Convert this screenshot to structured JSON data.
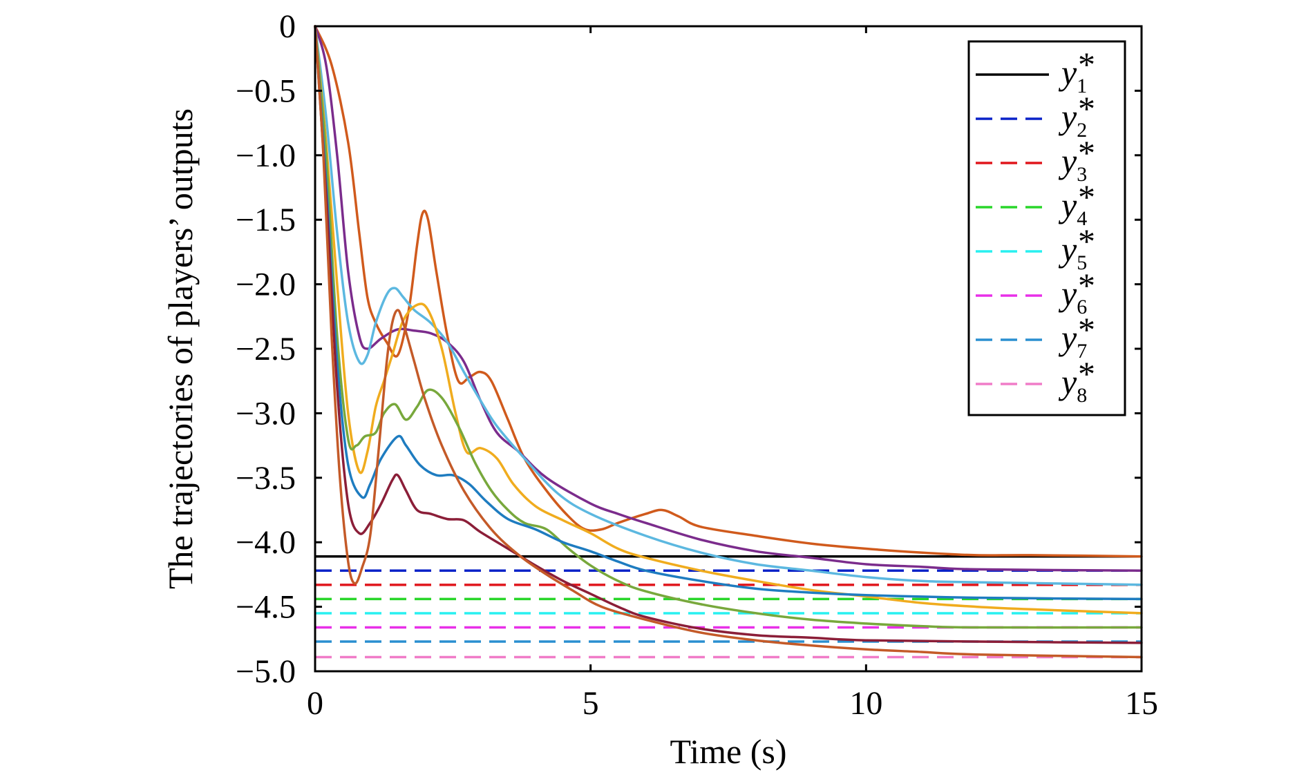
{
  "chart_data": {
    "type": "line",
    "title": "",
    "xlabel": "Time (s)",
    "ylabel": "The trajectories of players’ outputs",
    "xlim": [
      0,
      15
    ],
    "ylim": [
      -5.0,
      0
    ],
    "xticks": [
      0,
      5,
      10,
      15
    ],
    "xtick_labels": [
      "0",
      "5",
      "10",
      "15"
    ],
    "yticks": [
      0,
      -0.5,
      -1.0,
      -1.5,
      -2.0,
      -2.5,
      -3.0,
      -3.5,
      -4.0,
      -4.5,
      -5.0
    ],
    "ytick_labels": [
      "0",
      "−0.5",
      "−1.0",
      "−1.5",
      "−2.0",
      "−2.5",
      "−3.0",
      "−3.5",
      "−4.0",
      "−4.5",
      "−5.0"
    ],
    "grid": false,
    "legend_position": "top-right",
    "references": [
      {
        "name": "y",
        "sub": "1",
        "star": "*",
        "value": -4.11,
        "color": "#000000",
        "style": "solid"
      },
      {
        "name": "y",
        "sub": "2",
        "star": "*",
        "value": -4.22,
        "color": "#0a22c8",
        "style": "dashed"
      },
      {
        "name": "y",
        "sub": "3",
        "star": "*",
        "value": -4.33,
        "color": "#e0161c",
        "style": "dashed"
      },
      {
        "name": "y",
        "sub": "4",
        "star": "*",
        "value": -4.44,
        "color": "#29d62a",
        "style": "dashed"
      },
      {
        "name": "y",
        "sub": "5",
        "star": "*",
        "value": -4.55,
        "color": "#28f0f0",
        "style": "dashed"
      },
      {
        "name": "y",
        "sub": "6",
        "star": "*",
        "value": -4.66,
        "color": "#e830e8",
        "style": "dashed"
      },
      {
        "name": "y",
        "sub": "7",
        "star": "*",
        "value": -4.77,
        "color": "#2a8fd0",
        "style": "dashed"
      },
      {
        "name": "y",
        "sub": "8",
        "star": "*",
        "value": -4.89,
        "color": "#f07cc8",
        "style": "dashed"
      }
    ],
    "series": [
      {
        "color": "#d05a1c",
        "points": [
          [
            0,
            0
          ],
          [
            0.3,
            -0.3
          ],
          [
            0.6,
            -0.9
          ],
          [
            0.8,
            -1.6
          ],
          [
            0.95,
            -2.1
          ],
          [
            1.1,
            -2.3
          ],
          [
            1.3,
            -2.45
          ],
          [
            1.5,
            -2.55
          ],
          [
            1.7,
            -2.2
          ],
          [
            1.85,
            -1.7
          ],
          [
            1.95,
            -1.45
          ],
          [
            2.05,
            -1.5
          ],
          [
            2.2,
            -1.9
          ],
          [
            2.4,
            -2.4
          ],
          [
            2.6,
            -2.75
          ],
          [
            2.8,
            -2.72
          ],
          [
            3.0,
            -2.68
          ],
          [
            3.2,
            -2.75
          ],
          [
            3.5,
            -3.05
          ],
          [
            3.8,
            -3.35
          ],
          [
            4.2,
            -3.6
          ],
          [
            4.6,
            -3.8
          ],
          [
            4.9,
            -3.9
          ],
          [
            5.2,
            -3.9
          ],
          [
            5.5,
            -3.85
          ],
          [
            6.0,
            -3.78
          ],
          [
            6.3,
            -3.75
          ],
          [
            6.6,
            -3.8
          ],
          [
            7.0,
            -3.88
          ],
          [
            8.0,
            -3.95
          ],
          [
            9.0,
            -4.01
          ],
          [
            10.0,
            -4.05
          ],
          [
            11.0,
            -4.08
          ],
          [
            12.0,
            -4.1
          ],
          [
            13.0,
            -4.1
          ],
          [
            15.0,
            -4.11
          ]
        ]
      },
      {
        "color": "#7b2c8c",
        "points": [
          [
            0,
            0
          ],
          [
            0.2,
            -0.3
          ],
          [
            0.4,
            -1.0
          ],
          [
            0.6,
            -1.9
          ],
          [
            0.8,
            -2.4
          ],
          [
            0.95,
            -2.5
          ],
          [
            1.2,
            -2.42
          ],
          [
            1.5,
            -2.35
          ],
          [
            1.8,
            -2.36
          ],
          [
            2.1,
            -2.38
          ],
          [
            2.4,
            -2.45
          ],
          [
            2.7,
            -2.6
          ],
          [
            3.0,
            -2.9
          ],
          [
            3.3,
            -3.15
          ],
          [
            3.7,
            -3.3
          ],
          [
            4.2,
            -3.5
          ],
          [
            5.0,
            -3.7
          ],
          [
            5.5,
            -3.78
          ],
          [
            6.0,
            -3.85
          ],
          [
            7.0,
            -3.98
          ],
          [
            8.0,
            -4.07
          ],
          [
            9.0,
            -4.12
          ],
          [
            10.0,
            -4.17
          ],
          [
            11.0,
            -4.19
          ],
          [
            12.0,
            -4.21
          ],
          [
            15.0,
            -4.22
          ]
        ]
      },
      {
        "color": "#5cb8e0",
        "points": [
          [
            0,
            0
          ],
          [
            0.2,
            -0.7
          ],
          [
            0.4,
            -1.6
          ],
          [
            0.6,
            -2.3
          ],
          [
            0.8,
            -2.6
          ],
          [
            0.95,
            -2.55
          ],
          [
            1.1,
            -2.3
          ],
          [
            1.3,
            -2.08
          ],
          [
            1.45,
            -2.03
          ],
          [
            1.6,
            -2.1
          ],
          [
            1.8,
            -2.2
          ],
          [
            2.1,
            -2.3
          ],
          [
            2.4,
            -2.45
          ],
          [
            2.7,
            -2.68
          ],
          [
            3.0,
            -2.9
          ],
          [
            3.3,
            -3.1
          ],
          [
            3.8,
            -3.35
          ],
          [
            4.4,
            -3.62
          ],
          [
            5.0,
            -3.78
          ],
          [
            6.0,
            -3.95
          ],
          [
            7.0,
            -4.08
          ],
          [
            8.0,
            -4.17
          ],
          [
            9.0,
            -4.22
          ],
          [
            10.0,
            -4.27
          ],
          [
            11.0,
            -4.3
          ],
          [
            12.0,
            -4.31
          ],
          [
            15.0,
            -4.33
          ]
        ]
      },
      {
        "color": "#f0ac1e",
        "points": [
          [
            0,
            0
          ],
          [
            0.2,
            -0.9
          ],
          [
            0.4,
            -2.0
          ],
          [
            0.6,
            -3.0
          ],
          [
            0.8,
            -3.45
          ],
          [
            0.95,
            -3.3
          ],
          [
            1.1,
            -2.95
          ],
          [
            1.25,
            -2.75
          ],
          [
            1.4,
            -2.55
          ],
          [
            1.6,
            -2.28
          ],
          [
            1.85,
            -2.16
          ],
          [
            2.05,
            -2.2
          ],
          [
            2.3,
            -2.5
          ],
          [
            2.55,
            -3.0
          ],
          [
            2.75,
            -3.3
          ],
          [
            3.0,
            -3.27
          ],
          [
            3.3,
            -3.35
          ],
          [
            3.6,
            -3.55
          ],
          [
            4.0,
            -3.72
          ],
          [
            4.5,
            -3.83
          ],
          [
            5.0,
            -3.93
          ],
          [
            5.5,
            -4.05
          ],
          [
            6.0,
            -4.12
          ],
          [
            7.0,
            -4.22
          ],
          [
            8.0,
            -4.3
          ],
          [
            9.0,
            -4.37
          ],
          [
            10.0,
            -4.42
          ],
          [
            11.0,
            -4.47
          ],
          [
            12.0,
            -4.5
          ],
          [
            13.0,
            -4.52
          ],
          [
            15.0,
            -4.55
          ]
        ]
      },
      {
        "color": "#78a83c",
        "points": [
          [
            0,
            0
          ],
          [
            0.2,
            -1.0
          ],
          [
            0.4,
            -2.4
          ],
          [
            0.6,
            -3.2
          ],
          [
            0.75,
            -3.25
          ],
          [
            0.9,
            -3.18
          ],
          [
            1.1,
            -3.15
          ],
          [
            1.25,
            -3.0
          ],
          [
            1.45,
            -2.93
          ],
          [
            1.65,
            -3.05
          ],
          [
            1.85,
            -2.95
          ],
          [
            2.05,
            -2.82
          ],
          [
            2.3,
            -2.88
          ],
          [
            2.6,
            -3.1
          ],
          [
            2.9,
            -3.38
          ],
          [
            3.2,
            -3.6
          ],
          [
            3.5,
            -3.75
          ],
          [
            3.8,
            -3.85
          ],
          [
            4.2,
            -3.9
          ],
          [
            4.6,
            -4.05
          ],
          [
            5.0,
            -4.18
          ],
          [
            5.5,
            -4.3
          ],
          [
            6.0,
            -4.38
          ],
          [
            7.0,
            -4.48
          ],
          [
            8.0,
            -4.55
          ],
          [
            9.0,
            -4.6
          ],
          [
            10.0,
            -4.63
          ],
          [
            11.0,
            -4.65
          ],
          [
            12.0,
            -4.66
          ],
          [
            15.0,
            -4.66
          ]
        ]
      },
      {
        "color": "#1e7cc0",
        "points": [
          [
            0,
            0
          ],
          [
            0.2,
            -1.2
          ],
          [
            0.4,
            -2.6
          ],
          [
            0.6,
            -3.4
          ],
          [
            0.85,
            -3.65
          ],
          [
            1.0,
            -3.55
          ],
          [
            1.2,
            -3.35
          ],
          [
            1.5,
            -3.18
          ],
          [
            1.65,
            -3.25
          ],
          [
            1.9,
            -3.4
          ],
          [
            2.2,
            -3.48
          ],
          [
            2.5,
            -3.48
          ],
          [
            2.8,
            -3.55
          ],
          [
            3.1,
            -3.68
          ],
          [
            3.5,
            -3.82
          ],
          [
            4.0,
            -3.9
          ],
          [
            4.5,
            -4.0
          ],
          [
            5.0,
            -4.07
          ],
          [
            5.5,
            -4.15
          ],
          [
            6.0,
            -4.22
          ],
          [
            7.0,
            -4.3
          ],
          [
            8.0,
            -4.36
          ],
          [
            9.0,
            -4.39
          ],
          [
            10.0,
            -4.41
          ],
          [
            12.0,
            -4.43
          ],
          [
            15.0,
            -4.44
          ]
        ]
      },
      {
        "color": "#8b1e38",
        "points": [
          [
            0,
            0
          ],
          [
            0.2,
            -1.3
          ],
          [
            0.4,
            -2.8
          ],
          [
            0.6,
            -3.7
          ],
          [
            0.8,
            -3.93
          ],
          [
            1.0,
            -3.85
          ],
          [
            1.2,
            -3.7
          ],
          [
            1.4,
            -3.52
          ],
          [
            1.5,
            -3.48
          ],
          [
            1.65,
            -3.6
          ],
          [
            1.85,
            -3.75
          ],
          [
            2.1,
            -3.78
          ],
          [
            2.4,
            -3.82
          ],
          [
            2.7,
            -3.83
          ],
          [
            3.0,
            -3.92
          ],
          [
            3.5,
            -4.05
          ],
          [
            4.0,
            -4.18
          ],
          [
            4.5,
            -4.3
          ],
          [
            5.0,
            -4.4
          ],
          [
            5.5,
            -4.5
          ],
          [
            6.0,
            -4.58
          ],
          [
            7.0,
            -4.67
          ],
          [
            8.0,
            -4.72
          ],
          [
            9.0,
            -4.74
          ],
          [
            10.0,
            -4.76
          ],
          [
            12.0,
            -4.77
          ],
          [
            15.0,
            -4.78
          ]
        ]
      },
      {
        "color": "#c45a28",
        "points": [
          [
            0,
            0
          ],
          [
            0.15,
            -1.0
          ],
          [
            0.3,
            -2.4
          ],
          [
            0.45,
            -3.5
          ],
          [
            0.6,
            -4.15
          ],
          [
            0.72,
            -4.32
          ],
          [
            0.85,
            -4.2
          ],
          [
            1.0,
            -3.95
          ],
          [
            1.15,
            -3.3
          ],
          [
            1.3,
            -2.6
          ],
          [
            1.4,
            -2.3
          ],
          [
            1.5,
            -2.2
          ],
          [
            1.6,
            -2.3
          ],
          [
            1.8,
            -2.6
          ],
          [
            2.0,
            -2.9
          ],
          [
            2.3,
            -3.25
          ],
          [
            2.7,
            -3.6
          ],
          [
            3.2,
            -3.9
          ],
          [
            3.7,
            -4.1
          ],
          [
            4.2,
            -4.25
          ],
          [
            4.7,
            -4.38
          ],
          [
            5.2,
            -4.5
          ],
          [
            6.0,
            -4.6
          ],
          [
            7.0,
            -4.7
          ],
          [
            8.0,
            -4.76
          ],
          [
            9.0,
            -4.8
          ],
          [
            10.0,
            -4.83
          ],
          [
            11.0,
            -4.85
          ],
          [
            12.0,
            -4.87
          ],
          [
            15.0,
            -4.89
          ]
        ]
      }
    ]
  }
}
